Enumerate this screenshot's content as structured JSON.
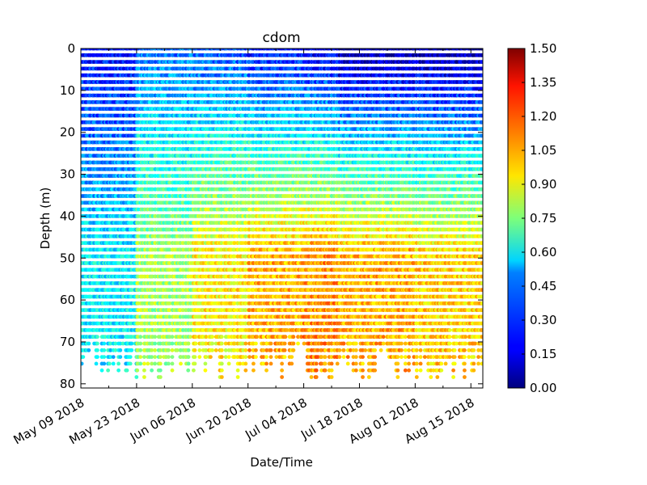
{
  "chart_data": {
    "type": "scatter",
    "title": "cdom",
    "xlabel": "Date/Time",
    "ylabel": "Depth (m)",
    "x_ticks": [
      "May 09 2018",
      "May 23 2018",
      "Jun 06 2018",
      "Jun 20 2018",
      "Jul 04 2018",
      "Jul 18 2018",
      "Aug 01 2018",
      "Aug 15 2018"
    ],
    "xlim": [
      "2018-05-09",
      "2018-08-18"
    ],
    "y_ticks": [
      0,
      10,
      20,
      30,
      40,
      50,
      60,
      70,
      80
    ],
    "ylim": [
      81,
      0
    ],
    "y_inverted": true,
    "colorbar": {
      "colormap": "jet",
      "range": [
        0.0,
        1.5
      ],
      "tick_labels": [
        "0.00",
        "0.15",
        "0.30",
        "0.45",
        "0.60",
        "0.75",
        "0.90",
        "1.05",
        "1.20",
        "1.35",
        "1.50"
      ]
    },
    "profiles": [
      {
        "period": "2018-05-09 to 2018-05-23",
        "max_depth": 79,
        "surface_cdom": 0.2,
        "deep_cdom": 0.55
      },
      {
        "period": "2018-05-23 to 2018-06-06",
        "max_depth": 79,
        "surface_cdom": 0.35,
        "deep_cdom": 0.8
      },
      {
        "period": "2018-06-06 to 2018-06-20",
        "max_depth": 79,
        "surface_cdom": 0.3,
        "deep_cdom": 0.95
      },
      {
        "period": "2018-06-20 to 2018-07-04",
        "max_depth": 79,
        "surface_cdom": 0.2,
        "deep_cdom": 1.05
      },
      {
        "period": "2018-07-04 to 2018-07-13",
        "max_depth": 80,
        "surface_cdom": 0.15,
        "deep_cdom": 1.1
      },
      {
        "period": "2018-07-13 to 2018-08-01",
        "max_depth": 79,
        "surface_cdom": 0.05,
        "deep_cdom": 1.05
      },
      {
        "period": "2018-08-01 to 2018-08-18",
        "max_depth": 79,
        "surface_cdom": 0.05,
        "deep_cdom": 1.0
      }
    ],
    "grid": false
  }
}
